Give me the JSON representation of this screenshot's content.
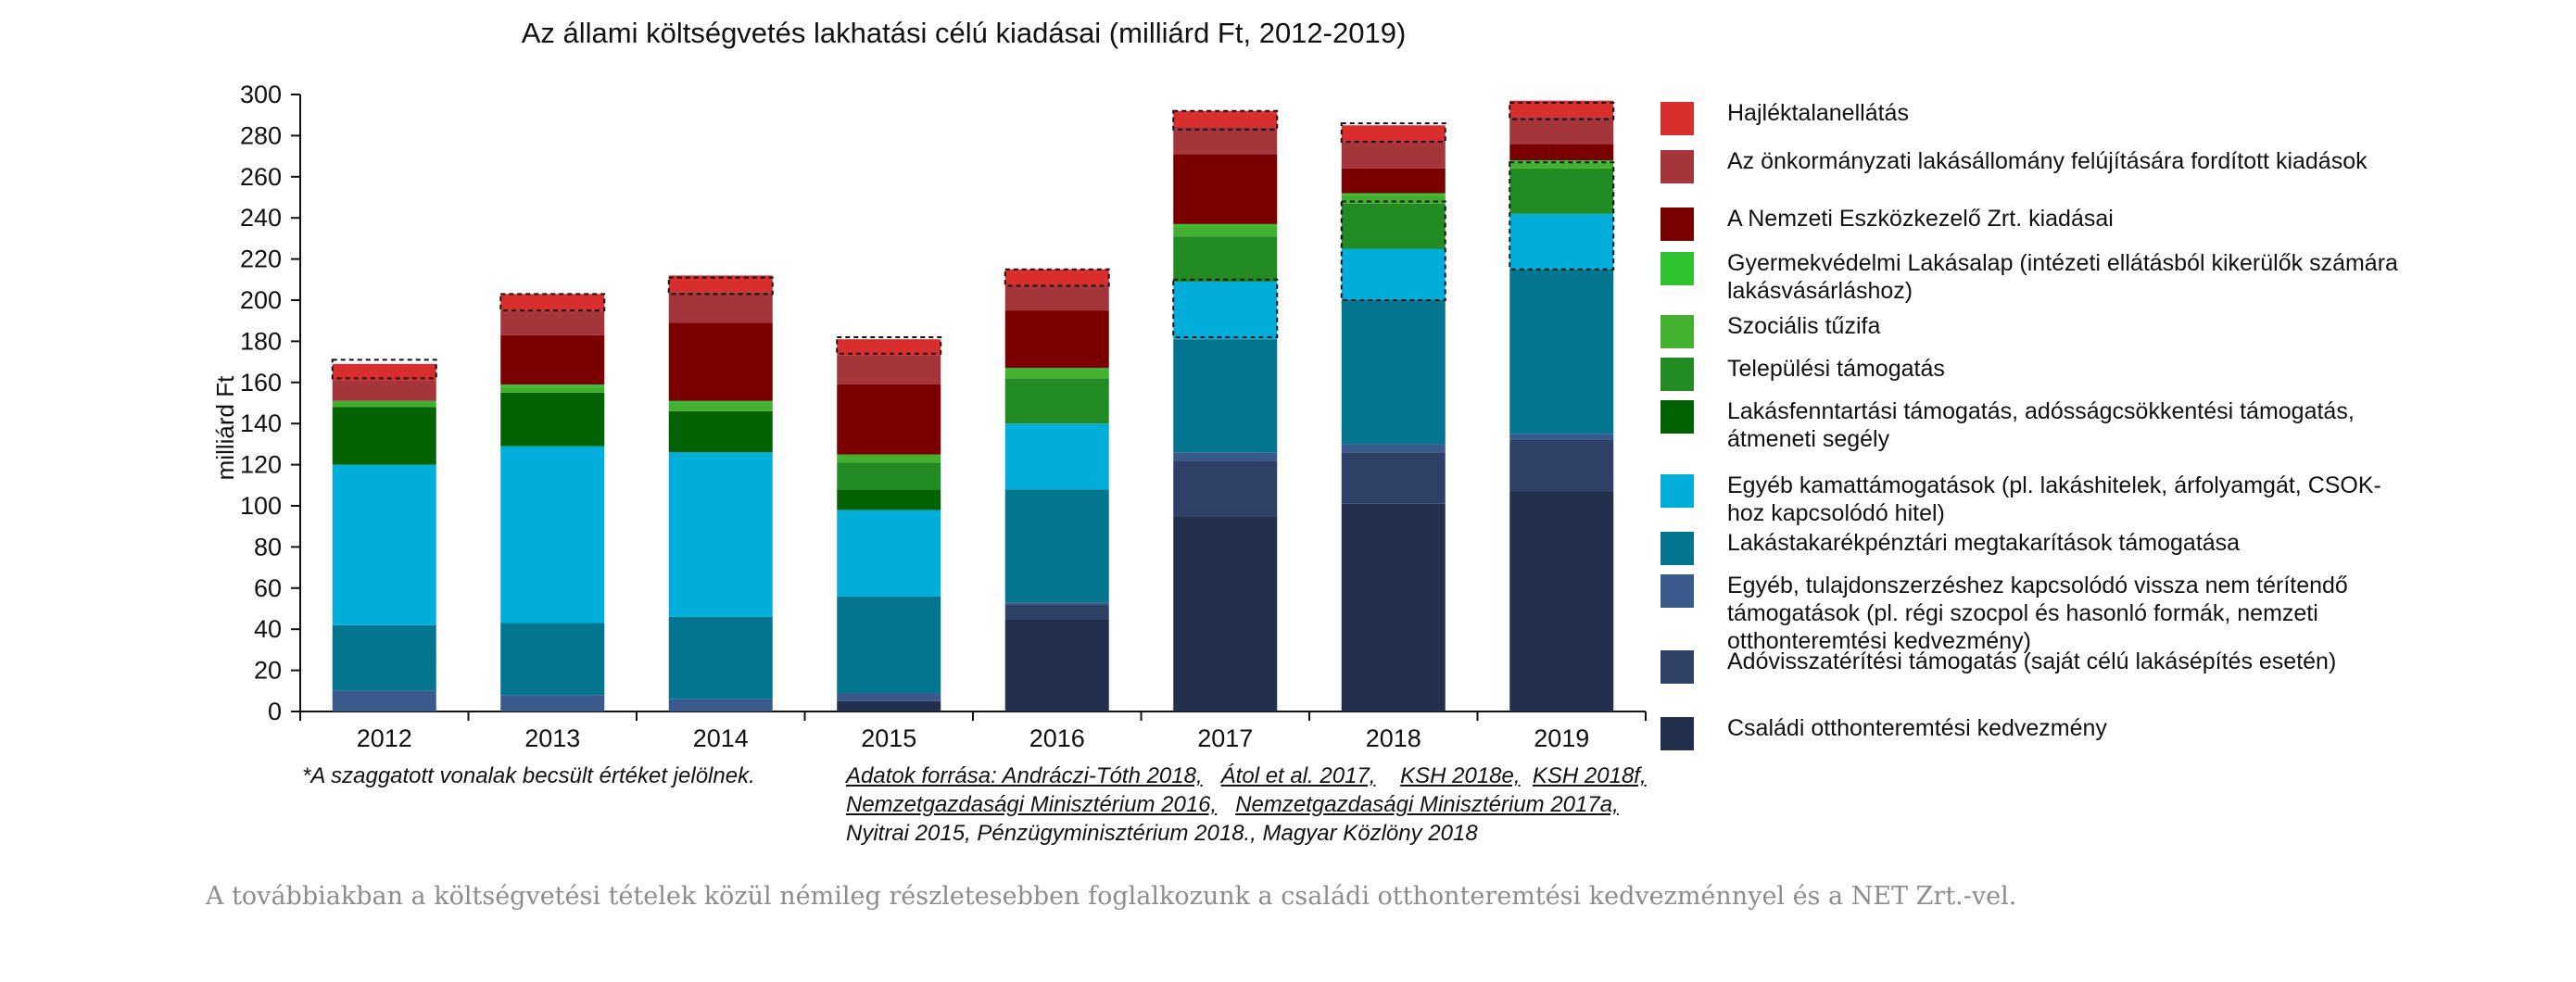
{
  "chart_data": {
    "type": "bar",
    "stacked": true,
    "title": "Az állami költségvetés lakhatási célú kiadásai (milliárd Ft, 2012-2019)",
    "ylabel": "milliárd Ft",
    "ylim": [
      0,
      300
    ],
    "yticks": [
      0,
      20,
      40,
      60,
      80,
      100,
      120,
      140,
      160,
      180,
      200,
      220,
      240,
      260,
      280,
      300
    ],
    "categories": [
      "2012",
      "2013",
      "2014",
      "2015",
      "2016",
      "2017",
      "2018",
      "2019"
    ],
    "legend_position": "right",
    "series": [
      {
        "name": "Családi otthonteremtési kedvezmény",
        "color": "#22304d",
        "values": [
          0,
          0,
          0,
          5,
          45,
          95,
          101,
          107
        ]
      },
      {
        "name": "Adóvisszatérítési támogatás (saját célú lakásépítés esetén)",
        "color": "#2f4166",
        "values": [
          0,
          0,
          0,
          0,
          7,
          27,
          25,
          25
        ]
      },
      {
        "name": "Egyéb, tulajdonszerzéshez kapcsolódó vissza nem térítendő támogatások (pl. régi szocpol és hasonló formák, nemzeti otthonteremtési kedvezmény)",
        "color": "#3a5a8c",
        "values": [
          10,
          8,
          6,
          4,
          1,
          4,
          4,
          3
        ]
      },
      {
        "name": "Lakástakarékpénztári megtakarítások támogatása",
        "color": "#03758f",
        "values": [
          32,
          35,
          40,
          47,
          55,
          55,
          70,
          80
        ]
      },
      {
        "name": "Egyéb kamattámogatások (pl. lakáshitelek, árfolyamgát, CSOK-hoz kapcsolódó hitel)",
        "color": "#00aed9",
        "values": [
          78,
          86,
          80,
          42,
          32,
          28,
          25,
          27
        ]
      },
      {
        "name": "Lakásfenntartási támogatás, adósságcsökkentési támogatás, átmeneti segély",
        "color": "#036203",
        "values": [
          28,
          26,
          20,
          10,
          0,
          0,
          0,
          0
        ]
      },
      {
        "name": "Települési támogatás",
        "color": "#238b23",
        "values": [
          0,
          0,
          0,
          13,
          22,
          22,
          22,
          22
        ]
      },
      {
        "name": "Szociális tűzifa",
        "color": "#44b030",
        "values": [
          3,
          3,
          4,
          4,
          4,
          5,
          4,
          3
        ]
      },
      {
        "name": "Gyermekvédelmi Lakásalap (intézeti ellátásból kikerülők számára lakásvásárláshoz)",
        "color": "#2fc42f",
        "values": [
          0,
          1,
          1,
          0,
          1,
          1,
          1,
          1
        ]
      },
      {
        "name": "A Nemzeti Eszközkezelő Zrt. kiadásai",
        "color": "#7a0000",
        "values": [
          0,
          24,
          38,
          34,
          28,
          34,
          12,
          8
        ]
      },
      {
        "name": "Az önkormányzati lakásállomány felújítására fordított kiadások",
        "color": "#a4353b",
        "values": [
          10,
          12,
          15,
          14,
          12,
          13,
          13,
          13
        ]
      },
      {
        "name": "Hajléktalanellátás",
        "color": "#d92e2e",
        "values": [
          8,
          8,
          8,
          8,
          8,
          8,
          8,
          8
        ]
      }
    ],
    "estimated_segments": [
      {
        "category": "2012",
        "from": 162,
        "to": 171
      },
      {
        "category": "2013",
        "from": 195,
        "to": 203
      },
      {
        "category": "2014",
        "from": 203,
        "to": 211
      },
      {
        "category": "2015",
        "from": 174,
        "to": 182
      },
      {
        "category": "2016",
        "from": 207,
        "to": 215
      },
      {
        "category": "2017",
        "from": 182,
        "to": 210
      },
      {
        "category": "2017",
        "from": 283,
        "to": 292
      },
      {
        "category": "2018",
        "from": 200,
        "to": 248
      },
      {
        "category": "2018",
        "from": 277,
        "to": 286
      },
      {
        "category": "2019",
        "from": 215,
        "to": 267
      },
      {
        "category": "2019",
        "from": 288,
        "to": 296
      }
    ]
  },
  "legend_display_order": [
    11,
    10,
    9,
    8,
    7,
    6,
    5,
    4,
    3,
    2,
    1,
    0
  ],
  "footnote": "*A szaggatott vonalak becsült értéket jelölnek.",
  "sources": {
    "line1": [
      "Adatok forrása: Andráczi-Tóth 2018,",
      "Átol et al. 2017,",
      "KSH 2018e,",
      "KSH 2018f,"
    ],
    "line2": [
      "Nemzetgazdasági Minisztérium 2016,",
      "Nemzetgazdasági Minisztérium 2017a,"
    ],
    "line3": "Nyitrai 2015,  Pénzügyminisztérium 2018.,  Magyar Közlöny 2018"
  },
  "caption": "A továbbiakban a költségvetési tételek közül némileg részletesebben foglalkozunk a családi otthonteremtési kedvezménnyel és a NET Zrt.-vel."
}
